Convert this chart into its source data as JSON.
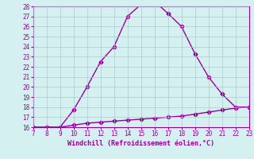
{
  "x_main": [
    7,
    8,
    9,
    10,
    11,
    12,
    13,
    14,
    15,
    16,
    17,
    18,
    19,
    20,
    21,
    22,
    23
  ],
  "y_main": [
    16.0,
    16.0,
    16.0,
    17.7,
    20.0,
    22.5,
    24.0,
    27.0,
    28.2,
    28.5,
    27.3,
    26.0,
    23.3,
    21.0,
    19.3,
    18.0,
    18.0
  ],
  "x_line2": [
    7,
    8,
    9,
    10,
    11,
    12,
    13,
    14,
    15,
    16,
    17,
    18,
    19,
    20,
    21,
    22,
    23
  ],
  "y_line2": [
    16.0,
    16.0,
    16.0,
    16.2,
    16.4,
    16.5,
    16.6,
    16.7,
    16.8,
    16.9,
    17.0,
    17.1,
    17.3,
    17.5,
    17.7,
    17.9,
    18.0
  ],
  "line_color": "#990099",
  "bg_color": "#d5f0f0",
  "grid_color": "#aacccc",
  "tick_color": "#990099",
  "label_color": "#990099",
  "xlabel": "Windchill (Refroidissement éolien,°C)",
  "xlim": [
    7,
    23
  ],
  "ylim": [
    16,
    28
  ],
  "yticks": [
    16,
    17,
    18,
    19,
    20,
    21,
    22,
    23,
    24,
    25,
    26,
    27,
    28
  ],
  "xticks": [
    7,
    8,
    9,
    10,
    11,
    12,
    13,
    14,
    15,
    16,
    17,
    18,
    19,
    20,
    21,
    22,
    23
  ],
  "marker": "D",
  "markersize": 2.5,
  "linewidth": 1.0
}
